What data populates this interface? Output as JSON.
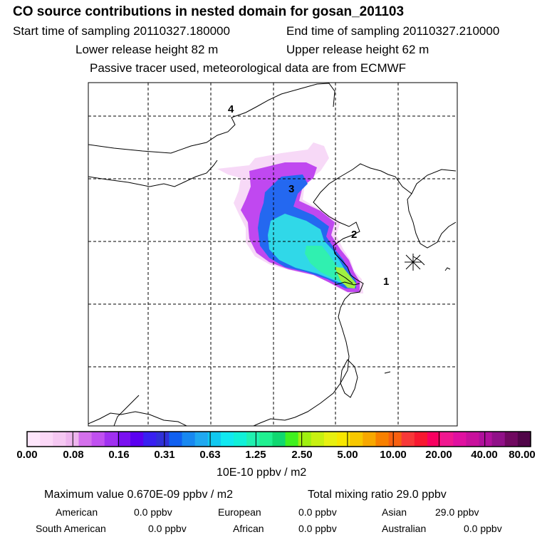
{
  "header": {
    "title": "CO  source contributions in nested domain for gosan_201103",
    "start_time": "Start time of sampling 20110327.180000",
    "end_time": "End time of sampling 20110327.210000",
    "lower_height": "Lower release height   82 m",
    "upper_height": "Upper release height   62 m",
    "note": "Passive tracer used, meteorological data are from ECMWF"
  },
  "map": {
    "labels": [
      {
        "text": "4"
      },
      {
        "text": "3"
      },
      {
        "text": "2"
      },
      {
        "text": "1"
      }
    ],
    "plume_colors": [
      "#f7d9f7",
      "#ee99ee",
      "#c040f0",
      "#7020f0",
      "#2050f0",
      "#20a0f0",
      "#30e0e0",
      "#30f0b0",
      "#60f060",
      "#c0f040"
    ]
  },
  "colorbar": {
    "colors": [
      "#fde6fb",
      "#fbd8f7",
      "#f5c8f2",
      "#eeb5ee",
      "#d470ec",
      "#c050f0",
      "#a030f0",
      "#7a10f0",
      "#5a00f0",
      "#3820f0",
      "#3030d8",
      "#1060f0",
      "#1888f0",
      "#20a8f0",
      "#10c8f0",
      "#10e8f0",
      "#10f0d8",
      "#20f0b0",
      "#20f090",
      "#10d870",
      "#40f020",
      "#a0f010",
      "#c8f010",
      "#e8f010",
      "#f8e800",
      "#f8c800",
      "#f8a800",
      "#f88000",
      "#f86010",
      "#f83838",
      "#f81830",
      "#f80060",
      "#f01890",
      "#e010a0",
      "#c8109c",
      "#b0109c",
      "#901088",
      "#700860",
      "#500448"
    ],
    "ticks": [
      "0.00",
      "0.08",
      "0.16",
      "0.31",
      "0.63",
      "1.25",
      "2.50",
      "5.00",
      "10.00",
      "20.00",
      "40.00",
      "80.00"
    ],
    "units": "10E-10 ppbv / m2"
  },
  "summary": {
    "max_value": "Maximum value  0.670E-09 ppbv / m2",
    "total_mixing": "Total mixing ratio       29.0 ppbv",
    "regions": [
      {
        "name": "American",
        "value": "0.0 ppbv"
      },
      {
        "name": "European",
        "value": "0.0 ppbv"
      },
      {
        "name": "Asian",
        "value": "29.0 ppbv"
      },
      {
        "name": "South American",
        "value": "0.0 ppbv"
      },
      {
        "name": "African",
        "value": "0.0 ppbv"
      },
      {
        "name": "Australian",
        "value": "0.0 ppbv"
      }
    ]
  }
}
